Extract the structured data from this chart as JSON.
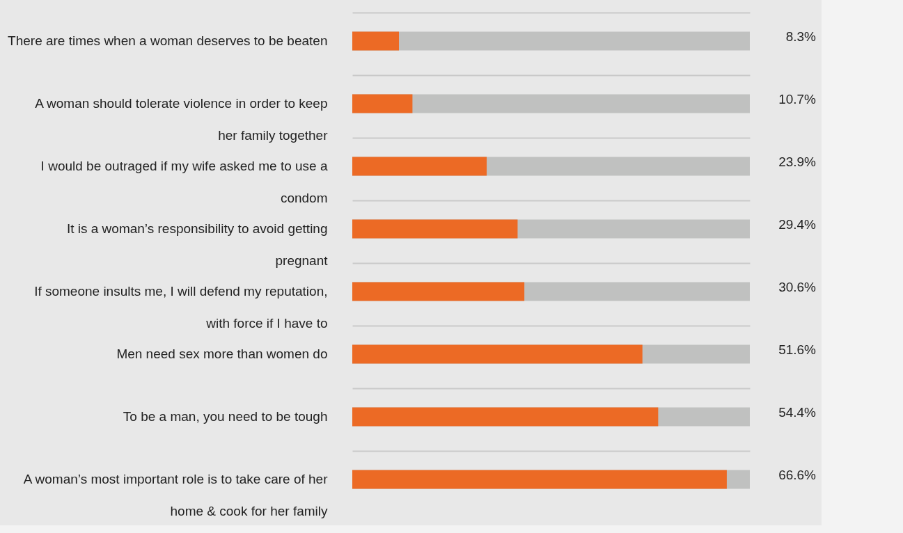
{
  "chart_data": {
    "type": "bar",
    "orientation": "horizontal",
    "categories": [
      "There are times when a woman deserves to be beaten",
      "A woman should tolerate violence in order to keep her family together",
      "I would be outraged if my wife asked me to use a condom",
      "It is a woman’s responsibility to avoid getting pregnant",
      "If someone insults me, I will defend my reputation, with force if I have to",
      "Men need sex more than women do",
      "To be a man, you need to be tough",
      "A woman’s most important role is to take care of her home & cook for her family"
    ],
    "values": [
      8.3,
      10.7,
      23.9,
      29.4,
      30.6,
      51.6,
      54.4,
      66.6
    ],
    "value_labels": [
      "8.3%",
      "10.7%",
      "23.9%",
      "29.4%",
      "30.6%",
      "51.6%",
      "54.4%",
      "66.6%"
    ],
    "color": "#ec6a25",
    "xlim": [
      0,
      70.7
    ],
    "grid": "y",
    "tick_labels": "y"
  }
}
